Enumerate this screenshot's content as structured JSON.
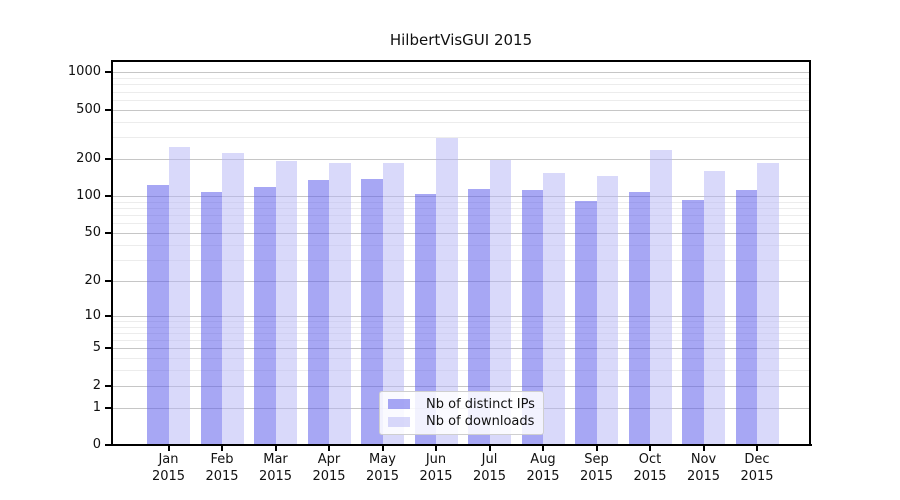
{
  "title": "HilbertVisGUI 2015",
  "chart_data": {
    "type": "bar",
    "title": "HilbertVisGUI 2015",
    "categories": [
      "Jan",
      "Feb",
      "Mar",
      "Apr",
      "May",
      "Jun",
      "Jul",
      "Aug",
      "Sep",
      "Oct",
      "Nov",
      "Dec"
    ],
    "category_year_label": "2015",
    "series": [
      {
        "name": "Nb of distinct IPs",
        "color": "rgba(95,95,235,0.55)",
        "values": [
          123,
          108,
          118,
          135,
          138,
          104,
          114,
          111,
          91,
          108,
          93,
          112
        ]
      },
      {
        "name": "Nb of downloads",
        "color": "rgba(180,180,245,0.5)",
        "values": [
          249,
          222,
          192,
          187,
          184,
          295,
          197,
          155,
          146,
          237,
          161,
          187
        ]
      }
    ],
    "xlabel": "",
    "ylabel": "",
    "yscale": "log10(value+1)",
    "ylim": [
      0,
      1233
    ],
    "yticks_major": [
      0,
      1,
      2,
      5,
      10,
      20,
      50,
      100,
      200,
      500,
      1000
    ],
    "yticks_minor": [
      3,
      4,
      6,
      7,
      8,
      9,
      30,
      40,
      60,
      70,
      80,
      90,
      300,
      400,
      600,
      700,
      800,
      900
    ],
    "grid": "horizontal major and minor gridlines",
    "legend_position": "bottom-center inside plot",
    "bar_colors_hex_on_white": {
      "distinct_ips": "#a7a7f4",
      "downloads": "#d9d9fa"
    }
  }
}
